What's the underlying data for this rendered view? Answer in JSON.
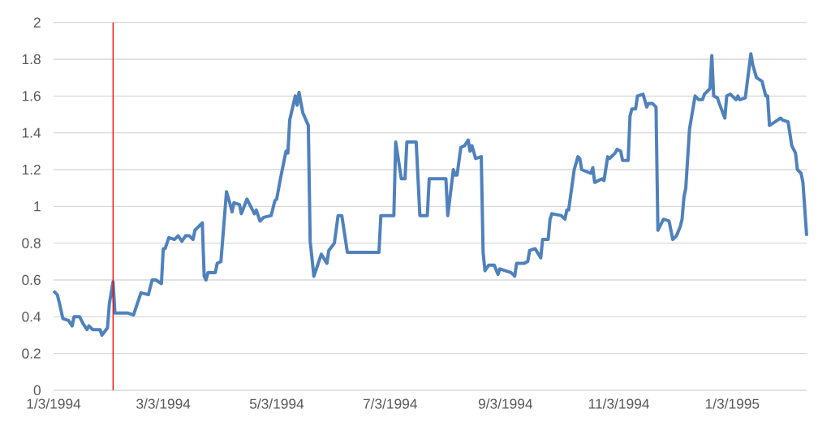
{
  "chart_data": {
    "type": "line",
    "x": [
      "1994-01-03",
      "1994-01-05",
      "1994-01-06",
      "1994-01-08",
      "1994-01-11",
      "1994-01-13",
      "1994-01-14",
      "1994-01-17",
      "1994-01-19",
      "1994-01-21",
      "1994-01-22",
      "1994-01-24",
      "1994-01-28",
      "1994-01-29",
      "1994-02-01",
      "1994-02-02",
      "1994-02-04",
      "1994-02-05",
      "1994-02-12",
      "1994-02-15",
      "1994-02-17",
      "1994-02-19",
      "1994-02-23",
      "1994-02-25",
      "1994-02-27",
      "1994-03-02",
      "1994-03-03",
      "1994-03-04",
      "1994-03-06",
      "1994-03-09",
      "1994-03-11",
      "1994-03-13",
      "1994-03-15",
      "1994-03-17",
      "1994-03-19",
      "1994-03-20",
      "1994-03-24",
      "1994-03-25",
      "1994-03-26",
      "1994-03-27",
      "1994-03-31",
      "1994-04-01",
      "1994-04-03",
      "1994-04-06",
      "1994-04-08",
      "1994-04-09",
      "1994-04-10",
      "1994-04-13",
      "1994-04-14",
      "1994-04-17",
      "1994-04-21",
      "1994-04-22",
      "1994-04-24",
      "1994-04-26",
      "1994-04-30",
      "1994-05-02",
      "1994-05-03",
      "1994-05-05",
      "1994-05-08",
      "1994-05-09",
      "1994-05-10",
      "1994-05-13",
      "1994-05-14",
      "1994-05-15",
      "1994-05-17",
      "1994-05-20",
      "1994-05-21",
      "1994-05-23",
      "1994-05-27",
      "1994-05-30",
      "1994-05-31",
      "1994-06-03",
      "1994-06-05",
      "1994-06-07",
      "1994-06-10",
      "1994-06-27",
      "1994-06-28",
      "1994-07-05",
      "1994-07-06",
      "1994-07-09",
      "1994-07-11",
      "1994-07-12",
      "1994-07-17",
      "1994-07-19",
      "1994-07-23",
      "1994-07-24",
      "1994-08-02",
      "1994-08-03",
      "1994-08-06",
      "1994-08-07",
      "1994-08-08",
      "1994-08-10",
      "1994-08-12",
      "1994-08-14",
      "1994-08-15",
      "1994-08-16",
      "1994-08-18",
      "1994-08-21",
      "1994-08-22",
      "1994-08-23",
      "1994-08-25",
      "1994-08-28",
      "1994-08-30",
      "1994-08-31",
      "1994-09-06",
      "1994-09-08",
      "1994-09-09",
      "1994-09-13",
      "1994-09-15",
      "1994-09-16",
      "1994-09-19",
      "1994-09-22",
      "1994-09-23",
      "1994-09-26",
      "1994-09-27",
      "1994-09-28",
      "1994-10-03",
      "1994-10-05",
      "1994-10-06",
      "1994-10-07",
      "1994-10-10",
      "1994-10-12",
      "1994-10-13",
      "1994-10-14",
      "1994-10-19",
      "1994-10-20",
      "1994-10-21",
      "1994-10-25",
      "1994-10-26",
      "1994-10-28",
      "1994-10-29",
      "1994-11-01",
      "1994-11-02",
      "1994-11-04",
      "1994-11-05",
      "1994-11-08",
      "1994-11-09",
      "1994-11-10",
      "1994-11-12",
      "1994-11-13",
      "1994-11-16",
      "1994-11-18",
      "1994-11-19",
      "1994-11-21",
      "1994-11-23",
      "1994-11-24",
      "1994-11-27",
      "1994-11-30",
      "1994-12-02",
      "1994-12-04",
      "1994-12-06",
      "1994-12-07",
      "1994-12-08",
      "1994-12-09",
      "1994-12-11",
      "1994-12-12",
      "1994-12-14",
      "1994-12-16",
      "1994-12-18",
      "1994-12-19",
      "1994-12-22",
      "1994-12-23",
      "1994-12-24",
      "1994-12-26",
      "1994-12-27",
      "1994-12-30",
      "1994-12-31",
      "1995-01-02",
      "1995-01-05",
      "1995-01-06",
      "1995-01-07",
      "1995-01-10",
      "1995-01-13",
      "1995-01-14",
      "1995-01-16",
      "1995-01-19",
      "1995-01-21",
      "1995-01-22",
      "1995-01-23",
      "1995-01-26",
      "1995-01-29",
      "1995-01-30",
      "1995-02-02",
      "1995-02-04",
      "1995-02-06",
      "1995-02-07",
      "1995-02-09",
      "1995-02-10",
      "1995-02-12"
    ],
    "series": [
      {
        "color": "#4f81bd",
        "values": [
          0.54,
          0.52,
          0.48,
          0.39,
          0.38,
          0.35,
          0.4,
          0.4,
          0.36,
          0.33,
          0.35,
          0.33,
          0.33,
          0.3,
          0.34,
          0.47,
          0.59,
          0.42,
          0.42,
          0.41,
          0.47,
          0.53,
          0.52,
          0.6,
          0.6,
          0.58,
          0.77,
          0.77,
          0.83,
          0.82,
          0.84,
          0.81,
          0.84,
          0.84,
          0.82,
          0.87,
          0.91,
          0.62,
          0.6,
          0.64,
          0.64,
          0.69,
          0.7,
          1.08,
          1.01,
          0.97,
          1.02,
          1.01,
          0.96,
          1.04,
          0.96,
          0.98,
          0.92,
          0.94,
          0.95,
          1.03,
          1.04,
          1.15,
          1.3,
          1.29,
          1.47,
          1.6,
          1.55,
          1.62,
          1.51,
          1.44,
          0.81,
          0.62,
          0.74,
          0.69,
          0.76,
          0.8,
          0.95,
          0.95,
          0.75,
          0.75,
          0.95,
          0.95,
          1.35,
          1.15,
          1.15,
          1.35,
          1.35,
          0.95,
          0.95,
          1.15,
          1.15,
          0.95,
          1.2,
          1.17,
          1.17,
          1.32,
          1.33,
          1.36,
          1.3,
          1.33,
          1.26,
          1.27,
          0.75,
          0.65,
          0.68,
          0.68,
          0.63,
          0.66,
          0.64,
          0.62,
          0.69,
          0.69,
          0.7,
          0.76,
          0.77,
          0.72,
          0.82,
          0.82,
          0.93,
          0.96,
          0.95,
          0.93,
          0.98,
          0.98,
          1.2,
          1.27,
          1.26,
          1.2,
          1.18,
          1.21,
          1.13,
          1.15,
          1.14,
          1.27,
          1.26,
          1.29,
          1.31,
          1.3,
          1.25,
          1.25,
          1.49,
          1.53,
          1.53,
          1.6,
          1.61,
          1.54,
          1.56,
          1.56,
          1.54,
          0.87,
          0.93,
          0.92,
          0.82,
          0.84,
          0.89,
          0.93,
          1.05,
          1.1,
          1.42,
          1.48,
          1.6,
          1.58,
          1.58,
          1.61,
          1.64,
          1.82,
          1.6,
          1.59,
          1.56,
          1.48,
          1.6,
          1.61,
          1.58,
          1.6,
          1.58,
          1.59,
          1.83,
          1.77,
          1.7,
          1.68,
          1.6,
          1.6,
          1.44,
          1.46,
          1.48,
          1.47,
          1.46,
          1.33,
          1.29,
          1.2,
          1.18,
          1.13,
          0.84
        ]
      }
    ],
    "xlim": [
      "1994-01-03",
      "1995-02-12"
    ],
    "xticks": [
      {
        "value": "1994-01-03",
        "label": "1/3/1994"
      },
      {
        "value": "1994-03-03",
        "label": "3/3/1994"
      },
      {
        "value": "1994-05-03",
        "label": "5/3/1994"
      },
      {
        "value": "1994-07-03",
        "label": "7/3/1994"
      },
      {
        "value": "1994-09-03",
        "label": "9/3/1994"
      },
      {
        "value": "1994-11-03",
        "label": "11/3/1994"
      },
      {
        "value": "1995-01-03",
        "label": "1/3/1995"
      }
    ],
    "ylim": [
      0,
      2
    ],
    "yticks": [
      0,
      0.2,
      0.4,
      0.6,
      0.8,
      1,
      1.2,
      1.4,
      1.6,
      1.8,
      2
    ],
    "grid": "y",
    "marker": "none",
    "line_style": "solid",
    "ref_lines": [
      {
        "axis": "x",
        "value": "1994-02-04",
        "color": "#ff0000"
      }
    ]
  }
}
